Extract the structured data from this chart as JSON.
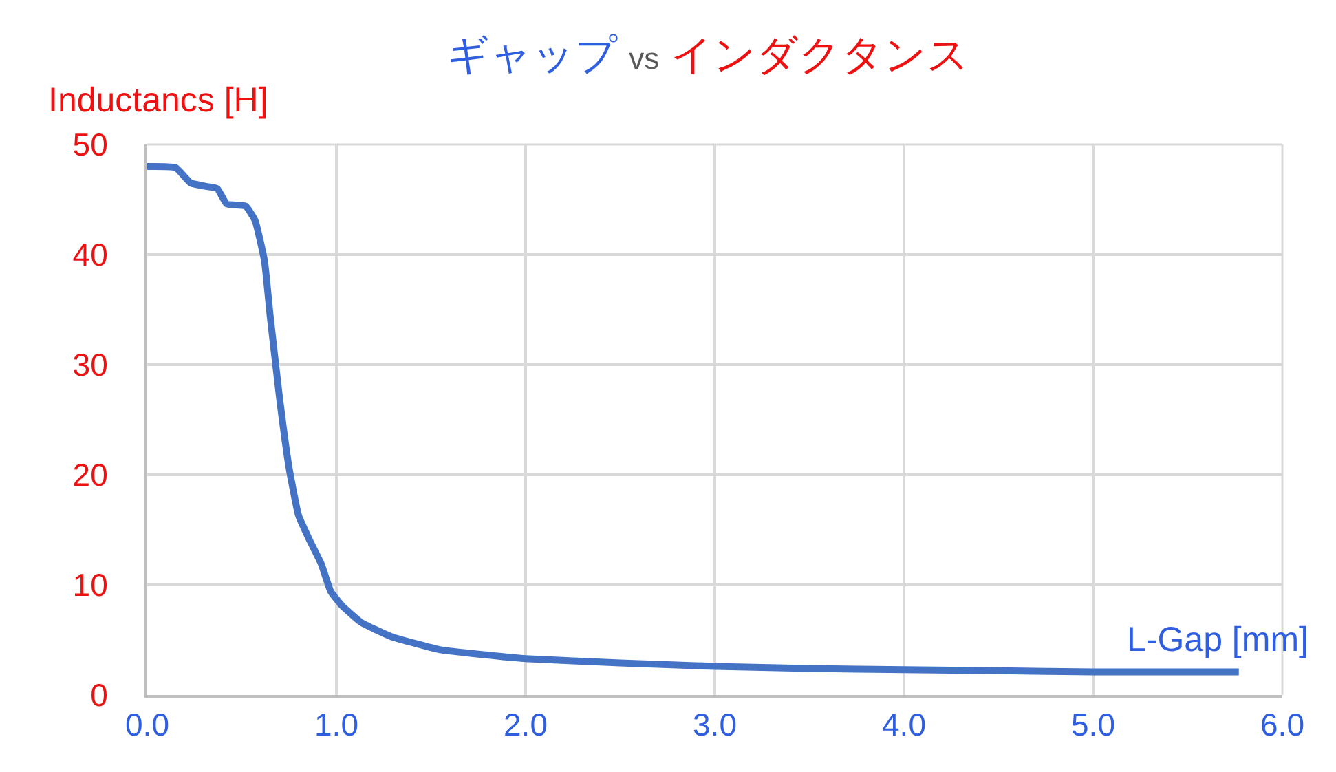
{
  "chart_data": {
    "type": "line",
    "title": "ギャップ vs インダクタンス",
    "xlabel": "L-Gap [mm]",
    "ylabel": "Inductancs [H]",
    "series": [
      {
        "color": "#4472c4",
        "x": [
          0.0,
          0.15,
          0.23,
          0.31,
          0.37,
          0.42,
          0.52,
          0.57,
          0.62,
          0.65,
          0.7,
          0.75,
          0.8,
          0.86,
          0.92,
          0.97,
          1.03,
          1.13,
          1.29,
          1.55,
          1.7,
          2.0,
          2.5,
          3.0,
          3.5,
          4.0,
          4.5,
          5.0,
          5.77
        ],
        "values": [
          48.0,
          47.9,
          46.5,
          46.2,
          46.0,
          44.6,
          44.4,
          43.1,
          39.4,
          34.4,
          26.9,
          20.6,
          16.3,
          14.0,
          11.9,
          9.4,
          8.1,
          6.6,
          5.3,
          4.1,
          3.8,
          3.3,
          2.9,
          2.6,
          2.4,
          2.3,
          2.2,
          2.1,
          2.1
        ]
      }
    ],
    "xlim": [
      0,
      6
    ],
    "xticks": [
      {
        "value": 0,
        "label": "0.0"
      },
      {
        "value": 1,
        "label": "1.0"
      },
      {
        "value": 2,
        "label": "2.0"
      },
      {
        "value": 3,
        "label": "3.0"
      },
      {
        "value": 4,
        "label": "4.0"
      },
      {
        "value": 5,
        "label": "5.0"
      },
      {
        "value": 6,
        "label": "6.0"
      }
    ],
    "ylim": [
      0,
      50
    ],
    "yticks": [
      0,
      10,
      20,
      30,
      40,
      50
    ],
    "grid": true,
    "legend": false,
    "marker": "none",
    "line_style": "solid"
  }
}
